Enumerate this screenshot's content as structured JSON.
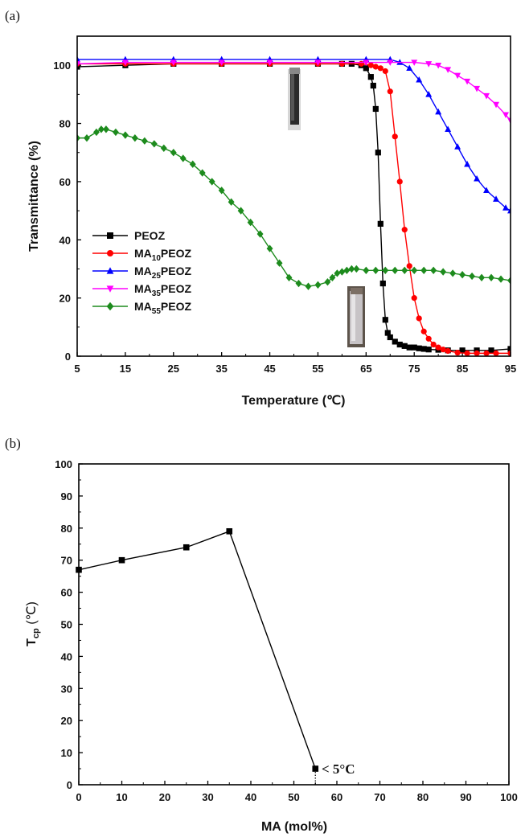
{
  "panels": [
    {
      "label": "(a)"
    },
    {
      "label": "(b)"
    }
  ],
  "chart_data": [
    {
      "type": "line",
      "title": "",
      "xlabel": "Temperature (℃)",
      "ylabel": "Transmittance (%)",
      "xlim": [
        5,
        95
      ],
      "ylim": [
        0,
        110
      ],
      "xticks": [
        "5",
        "15",
        "25",
        "35",
        "45",
        "55",
        "65",
        "75",
        "85",
        "95"
      ],
      "yticks": [
        "0",
        "20",
        "40",
        "60",
        "80",
        "100"
      ],
      "legend_position": "lower-left",
      "series": [
        {
          "name": "PEOZ",
          "color": "#000000",
          "marker": "square",
          "x": [
            5,
            15,
            25,
            35,
            45,
            55,
            60,
            62,
            64,
            65,
            66,
            66.5,
            67,
            67.5,
            68,
            68.5,
            69,
            69.5,
            70,
            71,
            72,
            73,
            74,
            75,
            76,
            77,
            78,
            80,
            82,
            85,
            88,
            91,
            95
          ],
          "y": [
            99.5,
            100,
            100.5,
            100.5,
            100.5,
            100.5,
            100.5,
            100.5,
            100,
            99,
            96,
            93,
            85,
            70,
            45.5,
            25,
            12.5,
            8,
            6.5,
            5,
            4,
            3.5,
            3,
            3,
            2.7,
            2.5,
            2.3,
            2.2,
            2,
            2,
            2,
            2,
            2.5
          ]
        },
        {
          "name": "MA10PEOZ",
          "color": "#ff0000",
          "marker": "circle",
          "x": [
            5,
            15,
            25,
            35,
            45,
            55,
            60,
            64,
            66,
            67,
            68,
            69,
            70,
            71,
            72,
            73,
            74,
            75,
            76,
            77,
            78,
            79,
            80,
            81,
            82,
            84,
            86,
            88,
            90,
            92,
            95
          ],
          "y": [
            100.5,
            100.5,
            100.5,
            100.5,
            100.5,
            100.5,
            100.5,
            100.5,
            100,
            99.5,
            99,
            98,
            91,
            75.5,
            60,
            43.5,
            31,
            20,
            13,
            8.5,
            6,
            4,
            3,
            2.3,
            1.8,
            1.2,
            1,
            1,
            1,
            1,
            1
          ]
        },
        {
          "name": "MA25PEOZ",
          "color": "#0000ff",
          "marker": "triangle-up",
          "x": [
            5,
            15,
            25,
            35,
            45,
            55,
            65,
            70,
            72,
            74,
            76,
            78,
            80,
            82,
            84,
            86,
            88,
            90,
            92,
            94,
            95
          ],
          "y": [
            102,
            102,
            102,
            102,
            102,
            102,
            102,
            102,
            101,
            99,
            95,
            90,
            84,
            78,
            72,
            66,
            61,
            57,
            54,
            51,
            50
          ]
        },
        {
          "name": "MA35PEOZ",
          "color": "#ff00ff",
          "marker": "triangle-down",
          "x": [
            5,
            15,
            25,
            35,
            45,
            55,
            65,
            70,
            75,
            78,
            80,
            82,
            84,
            86,
            88,
            90,
            92,
            94,
            95
          ],
          "y": [
            100.5,
            101,
            101,
            101,
            101,
            101,
            101,
            101,
            101,
            100.5,
            100,
            98.5,
            96.5,
            94.5,
            92,
            89.5,
            86.5,
            83,
            81
          ]
        },
        {
          "name": "MA55PEOZ",
          "color": "#1d8b1d",
          "marker": "diamond",
          "x": [
            5,
            7,
            9,
            10,
            11,
            13,
            15,
            17,
            19,
            21,
            23,
            25,
            27,
            29,
            31,
            33,
            35,
            37,
            39,
            41,
            43,
            45,
            47,
            49,
            51,
            53,
            55,
            57,
            58,
            59,
            60,
            61,
            62,
            63,
            65,
            67,
            69,
            71,
            73,
            75,
            77,
            79,
            81,
            83,
            85,
            87,
            89,
            91,
            93,
            95
          ],
          "y": [
            75,
            75,
            77,
            78,
            78,
            77,
            76,
            75,
            74,
            73,
            71.5,
            70,
            68,
            66,
            63,
            60,
            57,
            53,
            50,
            46,
            42,
            37,
            32,
            27,
            25,
            24,
            24.5,
            25.5,
            27,
            28.5,
            29,
            29.5,
            30,
            30,
            29.5,
            29.5,
            29.5,
            29.5,
            29.5,
            29.5,
            29.5,
            29.5,
            29,
            28.5,
            28,
            27.5,
            27,
            27,
            26.5,
            26
          ]
        }
      ]
    },
    {
      "type": "line",
      "title": "",
      "xlabel": "MA (mol%)",
      "ylabel": "Tcp (℃)",
      "ylabel_main": "T",
      "ylabel_sub": "cp",
      "ylabel_unit": " (℃)",
      "xlim": [
        0,
        100
      ],
      "ylim": [
        0,
        100
      ],
      "xticks": [
        "0",
        "10",
        "20",
        "30",
        "40",
        "50",
        "60",
        "70",
        "80",
        "90",
        "100"
      ],
      "yticks": [
        "0",
        "10",
        "20",
        "30",
        "40",
        "50",
        "60",
        "70",
        "80",
        "90",
        "100"
      ],
      "annotation": "< 5°C",
      "series": [
        {
          "color": "#000000",
          "marker": "square",
          "x": [
            0,
            10,
            25,
            35,
            55
          ],
          "y": [
            67,
            70,
            74,
            79,
            5
          ]
        }
      ]
    }
  ]
}
